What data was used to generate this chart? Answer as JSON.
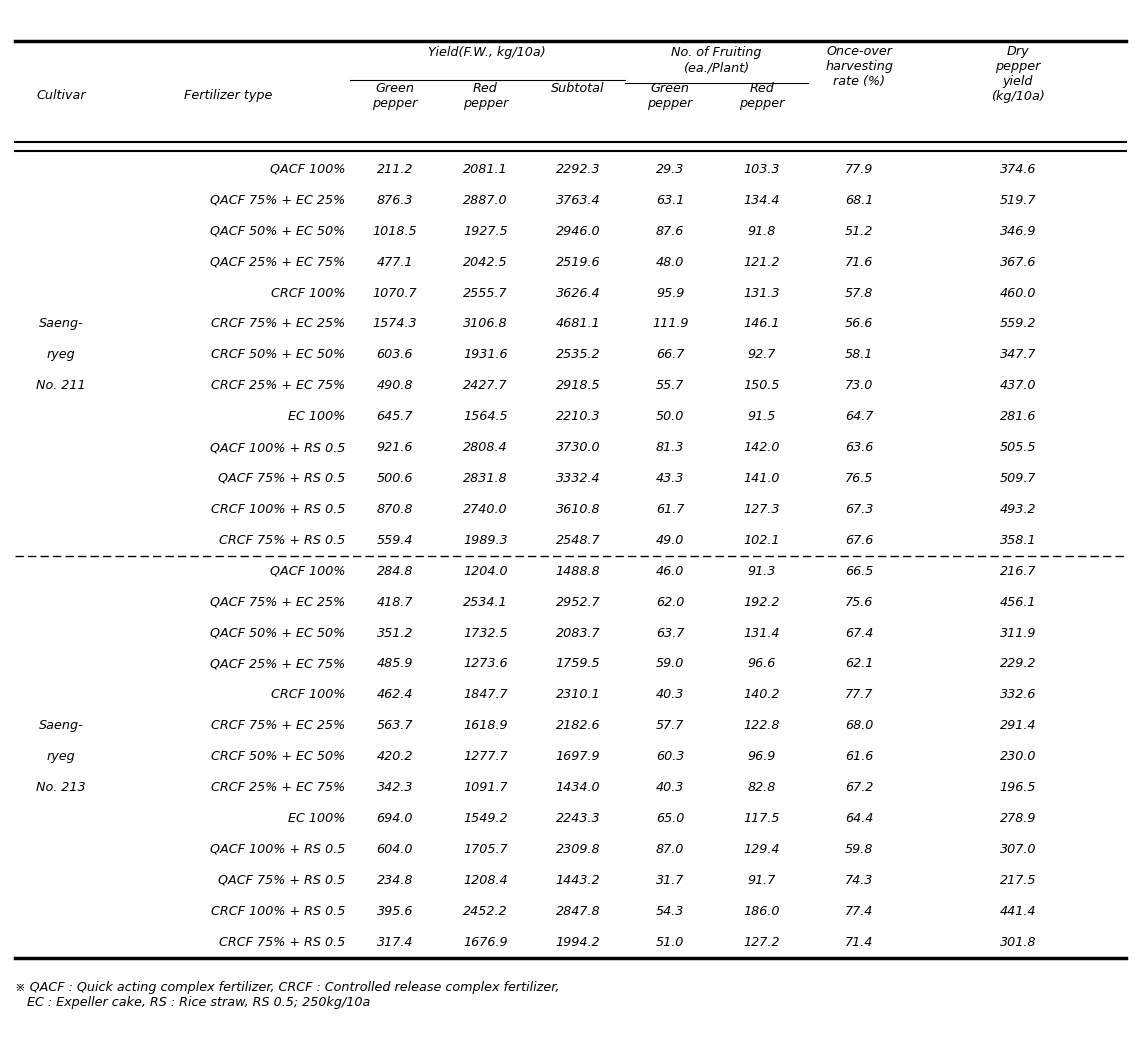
{
  "footnote": "※ QACF : Quick acting complex fertilizer, CRCF : Controlled release complex fertilizer,\n   EC : Expeller cake, RS : Rice straw, RS 0.5; 250kg/10a",
  "rows": [
    [
      "",
      "QACF 100%",
      "211.2",
      "2081.1",
      "2292.3",
      "29.3",
      "103.3",
      "77.9",
      "374.6"
    ],
    [
      "",
      "QACF 75% + EC 25%",
      "876.3",
      "2887.0",
      "3763.4",
      "63.1",
      "134.4",
      "68.1",
      "519.7"
    ],
    [
      "",
      "QACF 50% + EC 50%",
      "1018.5",
      "1927.5",
      "2946.0",
      "87.6",
      "91.8",
      "51.2",
      "346.9"
    ],
    [
      "",
      "QACF 25% + EC 75%",
      "477.1",
      "2042.5",
      "2519.6",
      "48.0",
      "121.2",
      "71.6",
      "367.6"
    ],
    [
      "",
      "CRCF 100%",
      "1070.7",
      "2555.7",
      "3626.4",
      "95.9",
      "131.3",
      "57.8",
      "460.0"
    ],
    [
      "Saeng-",
      "CRCF 75% + EC 25%",
      "1574.3",
      "3106.8",
      "4681.1",
      "111.9",
      "146.1",
      "56.6",
      "559.2"
    ],
    [
      "ryeg",
      "CRCF 50% + EC 50%",
      "603.6",
      "1931.6",
      "2535.2",
      "66.7",
      "92.7",
      "58.1",
      "347.7"
    ],
    [
      "No. 211",
      "CRCF 25% + EC 75%",
      "490.8",
      "2427.7",
      "2918.5",
      "55.7",
      "150.5",
      "73.0",
      "437.0"
    ],
    [
      "",
      "EC 100%",
      "645.7",
      "1564.5",
      "2210.3",
      "50.0",
      "91.5",
      "64.7",
      "281.6"
    ],
    [
      "",
      "QACF 100% + RS 0.5",
      "921.6",
      "2808.4",
      "3730.0",
      "81.3",
      "142.0",
      "63.6",
      "505.5"
    ],
    [
      "",
      "QACF 75% + RS 0.5",
      "500.6",
      "2831.8",
      "3332.4",
      "43.3",
      "141.0",
      "76.5",
      "509.7"
    ],
    [
      "",
      "CRCF 100% + RS 0.5",
      "870.8",
      "2740.0",
      "3610.8",
      "61.7",
      "127.3",
      "67.3",
      "493.2"
    ],
    [
      "",
      "CRCF 75% + RS 0.5",
      "559.4",
      "1989.3",
      "2548.7",
      "49.0",
      "102.1",
      "67.6",
      "358.1"
    ],
    [
      "",
      "QACF 100%",
      "284.8",
      "1204.0",
      "1488.8",
      "46.0",
      "91.3",
      "66.5",
      "216.7"
    ],
    [
      "",
      "QACF 75% + EC 25%",
      "418.7",
      "2534.1",
      "2952.7",
      "62.0",
      "192.2",
      "75.6",
      "456.1"
    ],
    [
      "",
      "QACF 50% + EC 50%",
      "351.2",
      "1732.5",
      "2083.7",
      "63.7",
      "131.4",
      "67.4",
      "311.9"
    ],
    [
      "",
      "QACF 25% + EC 75%",
      "485.9",
      "1273.6",
      "1759.5",
      "59.0",
      "96.6",
      "62.1",
      "229.2"
    ],
    [
      "",
      "CRCF 100%",
      "462.4",
      "1847.7",
      "2310.1",
      "40.3",
      "140.2",
      "77.7",
      "332.6"
    ],
    [
      "Saeng-",
      "CRCF 75% + EC 25%",
      "563.7",
      "1618.9",
      "2182.6",
      "57.7",
      "122.8",
      "68.0",
      "291.4"
    ],
    [
      "ryeg",
      "CRCF 50% + EC 50%",
      "420.2",
      "1277.7",
      "1697.9",
      "60.3",
      "96.9",
      "61.6",
      "230.0"
    ],
    [
      "No. 213",
      "CRCF 25% + EC 75%",
      "342.3",
      "1091.7",
      "1434.0",
      "40.3",
      "82.8",
      "67.2",
      "196.5"
    ],
    [
      "",
      "EC 100%",
      "694.0",
      "1549.2",
      "2243.3",
      "65.0",
      "117.5",
      "64.4",
      "278.9"
    ],
    [
      "",
      "QACF 100% + RS 0.5",
      "604.0",
      "1705.7",
      "2309.8",
      "87.0",
      "129.4",
      "59.8",
      "307.0"
    ],
    [
      "",
      "QACF 75% + RS 0.5",
      "234.8",
      "1208.4",
      "1443.2",
      "31.7",
      "91.7",
      "74.3",
      "217.5"
    ],
    [
      "",
      "CRCF 100% + RS 0.5",
      "395.6",
      "2452.2",
      "2847.8",
      "54.3",
      "186.0",
      "77.4",
      "441.4"
    ],
    [
      "",
      "CRCF 75% + RS 0.5",
      "317.4",
      "1676.9",
      "1994.2",
      "51.0",
      "127.2",
      "71.4",
      "301.8"
    ]
  ]
}
